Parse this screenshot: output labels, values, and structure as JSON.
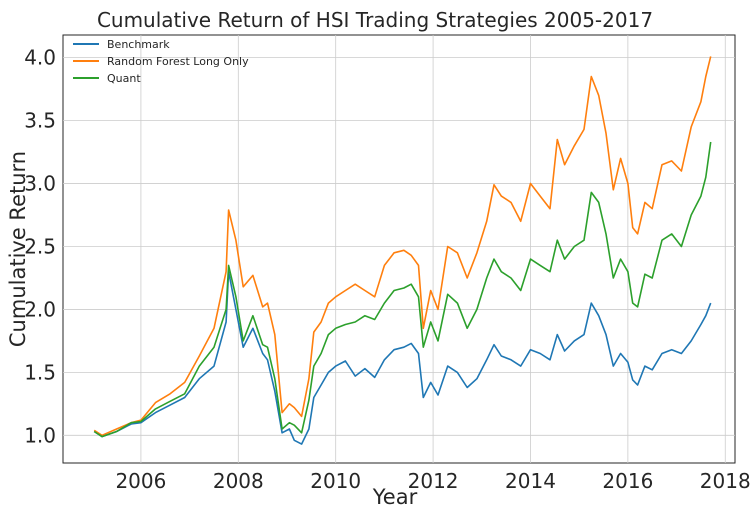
{
  "chart_data": {
    "type": "line",
    "title": "Cumulative Return of HSI Trading Strategies 2005-2017",
    "xlabel": "Year",
    "ylabel": "Cumulative Return",
    "xlim": [
      2004.4,
      2018.2
    ],
    "ylim": [
      0.78,
      4.18
    ],
    "xticks": [
      2006,
      2008,
      2010,
      2012,
      2014,
      2016,
      2018
    ],
    "yticks": [
      1.0,
      1.5,
      2.0,
      2.5,
      3.0,
      3.5,
      4.0
    ],
    "xtick_labels": [
      "2006",
      "2008",
      "2010",
      "2012",
      "2014",
      "2016",
      "2018"
    ],
    "ytick_labels": [
      "1.0",
      "1.5",
      "2.0",
      "2.5",
      "3.0",
      "3.5",
      "4.0"
    ],
    "grid": true,
    "legend_position": "top-left",
    "series": [
      {
        "name": "Benchmark",
        "color": "#1f77b4",
        "points": [
          [
            2005.04,
            1.03
          ],
          [
            2005.2,
            0.99
          ],
          [
            2005.5,
            1.03
          ],
          [
            2005.8,
            1.09
          ],
          [
            2006.0,
            1.1
          ],
          [
            2006.3,
            1.18
          ],
          [
            2006.6,
            1.24
          ],
          [
            2006.9,
            1.3
          ],
          [
            2007.2,
            1.45
          ],
          [
            2007.5,
            1.55
          ],
          [
            2007.75,
            1.9
          ],
          [
            2007.8,
            2.3
          ],
          [
            2007.95,
            2.0
          ],
          [
            2008.1,
            1.7
          ],
          [
            2008.3,
            1.85
          ],
          [
            2008.5,
            1.65
          ],
          [
            2008.6,
            1.6
          ],
          [
            2008.75,
            1.35
          ],
          [
            2008.9,
            1.02
          ],
          [
            2009.05,
            1.05
          ],
          [
            2009.15,
            0.96
          ],
          [
            2009.3,
            0.93
          ],
          [
            2009.45,
            1.05
          ],
          [
            2009.55,
            1.3
          ],
          [
            2009.7,
            1.4
          ],
          [
            2009.85,
            1.5
          ],
          [
            2010.0,
            1.55
          ],
          [
            2010.2,
            1.59
          ],
          [
            2010.4,
            1.47
          ],
          [
            2010.6,
            1.53
          ],
          [
            2010.8,
            1.46
          ],
          [
            2011.0,
            1.6
          ],
          [
            2011.2,
            1.68
          ],
          [
            2011.4,
            1.7
          ],
          [
            2011.55,
            1.73
          ],
          [
            2011.7,
            1.65
          ],
          [
            2011.8,
            1.3
          ],
          [
            2011.95,
            1.42
          ],
          [
            2012.1,
            1.32
          ],
          [
            2012.3,
            1.55
          ],
          [
            2012.5,
            1.5
          ],
          [
            2012.7,
            1.38
          ],
          [
            2012.9,
            1.45
          ],
          [
            2013.1,
            1.6
          ],
          [
            2013.25,
            1.72
          ],
          [
            2013.4,
            1.63
          ],
          [
            2013.6,
            1.6
          ],
          [
            2013.8,
            1.55
          ],
          [
            2014.0,
            1.68
          ],
          [
            2014.2,
            1.65
          ],
          [
            2014.4,
            1.6
          ],
          [
            2014.55,
            1.8
          ],
          [
            2014.7,
            1.67
          ],
          [
            2014.9,
            1.75
          ],
          [
            2015.1,
            1.8
          ],
          [
            2015.25,
            2.05
          ],
          [
            2015.4,
            1.95
          ],
          [
            2015.55,
            1.8
          ],
          [
            2015.7,
            1.55
          ],
          [
            2015.85,
            1.65
          ],
          [
            2016.0,
            1.58
          ],
          [
            2016.1,
            1.44
          ],
          [
            2016.2,
            1.4
          ],
          [
            2016.35,
            1.55
          ],
          [
            2016.5,
            1.52
          ],
          [
            2016.7,
            1.65
          ],
          [
            2016.9,
            1.68
          ],
          [
            2017.1,
            1.65
          ],
          [
            2017.3,
            1.75
          ],
          [
            2017.5,
            1.88
          ],
          [
            2017.6,
            1.95
          ],
          [
            2017.7,
            2.05
          ]
        ]
      },
      {
        "name": "Random Forest Long Only",
        "color": "#ff7f0e",
        "points": [
          [
            2005.04,
            1.04
          ],
          [
            2005.2,
            1.0
          ],
          [
            2005.5,
            1.05
          ],
          [
            2005.8,
            1.1
          ],
          [
            2006.0,
            1.12
          ],
          [
            2006.3,
            1.26
          ],
          [
            2006.6,
            1.33
          ],
          [
            2006.9,
            1.42
          ],
          [
            2007.2,
            1.63
          ],
          [
            2007.5,
            1.85
          ],
          [
            2007.75,
            2.3
          ],
          [
            2007.8,
            2.79
          ],
          [
            2007.95,
            2.55
          ],
          [
            2008.1,
            2.18
          ],
          [
            2008.3,
            2.27
          ],
          [
            2008.5,
            2.02
          ],
          [
            2008.6,
            2.05
          ],
          [
            2008.75,
            1.8
          ],
          [
            2008.9,
            1.18
          ],
          [
            2009.05,
            1.25
          ],
          [
            2009.15,
            1.22
          ],
          [
            2009.3,
            1.15
          ],
          [
            2009.45,
            1.45
          ],
          [
            2009.55,
            1.82
          ],
          [
            2009.7,
            1.9
          ],
          [
            2009.85,
            2.05
          ],
          [
            2010.0,
            2.1
          ],
          [
            2010.2,
            2.15
          ],
          [
            2010.4,
            2.2
          ],
          [
            2010.6,
            2.15
          ],
          [
            2010.8,
            2.1
          ],
          [
            2011.0,
            2.35
          ],
          [
            2011.2,
            2.45
          ],
          [
            2011.4,
            2.47
          ],
          [
            2011.55,
            2.43
          ],
          [
            2011.7,
            2.35
          ],
          [
            2011.8,
            1.85
          ],
          [
            2011.95,
            2.15
          ],
          [
            2012.1,
            2.0
          ],
          [
            2012.3,
            2.5
          ],
          [
            2012.5,
            2.45
          ],
          [
            2012.7,
            2.25
          ],
          [
            2012.9,
            2.45
          ],
          [
            2013.1,
            2.7
          ],
          [
            2013.25,
            2.99
          ],
          [
            2013.4,
            2.9
          ],
          [
            2013.6,
            2.85
          ],
          [
            2013.8,
            2.7
          ],
          [
            2014.0,
            3.0
          ],
          [
            2014.2,
            2.9
          ],
          [
            2014.4,
            2.8
          ],
          [
            2014.55,
            3.35
          ],
          [
            2014.7,
            3.15
          ],
          [
            2014.9,
            3.3
          ],
          [
            2015.1,
            3.43
          ],
          [
            2015.25,
            3.85
          ],
          [
            2015.4,
            3.7
          ],
          [
            2015.55,
            3.4
          ],
          [
            2015.7,
            2.95
          ],
          [
            2015.85,
            3.2
          ],
          [
            2016.0,
            3.0
          ],
          [
            2016.1,
            2.65
          ],
          [
            2016.2,
            2.6
          ],
          [
            2016.35,
            2.85
          ],
          [
            2016.5,
            2.8
          ],
          [
            2016.7,
            3.15
          ],
          [
            2016.9,
            3.18
          ],
          [
            2017.1,
            3.1
          ],
          [
            2017.3,
            3.45
          ],
          [
            2017.5,
            3.65
          ],
          [
            2017.6,
            3.85
          ],
          [
            2017.7,
            4.01
          ]
        ]
      },
      {
        "name": "Quant",
        "color": "#2ca02c",
        "points": [
          [
            2005.04,
            1.03
          ],
          [
            2005.2,
            0.99
          ],
          [
            2005.5,
            1.03
          ],
          [
            2005.8,
            1.1
          ],
          [
            2006.0,
            1.11
          ],
          [
            2006.3,
            1.21
          ],
          [
            2006.6,
            1.27
          ],
          [
            2006.9,
            1.33
          ],
          [
            2007.2,
            1.55
          ],
          [
            2007.5,
            1.7
          ],
          [
            2007.75,
            2.0
          ],
          [
            2007.8,
            2.35
          ],
          [
            2007.95,
            2.1
          ],
          [
            2008.1,
            1.75
          ],
          [
            2008.3,
            1.95
          ],
          [
            2008.5,
            1.72
          ],
          [
            2008.6,
            1.7
          ],
          [
            2008.75,
            1.45
          ],
          [
            2008.9,
            1.05
          ],
          [
            2009.05,
            1.1
          ],
          [
            2009.15,
            1.08
          ],
          [
            2009.3,
            1.02
          ],
          [
            2009.45,
            1.28
          ],
          [
            2009.55,
            1.55
          ],
          [
            2009.7,
            1.65
          ],
          [
            2009.85,
            1.8
          ],
          [
            2010.0,
            1.85
          ],
          [
            2010.2,
            1.88
          ],
          [
            2010.4,
            1.9
          ],
          [
            2010.6,
            1.95
          ],
          [
            2010.8,
            1.92
          ],
          [
            2011.0,
            2.05
          ],
          [
            2011.2,
            2.15
          ],
          [
            2011.4,
            2.17
          ],
          [
            2011.55,
            2.2
          ],
          [
            2011.7,
            2.1
          ],
          [
            2011.8,
            1.7
          ],
          [
            2011.95,
            1.9
          ],
          [
            2012.1,
            1.75
          ],
          [
            2012.3,
            2.12
          ],
          [
            2012.5,
            2.05
          ],
          [
            2012.7,
            1.85
          ],
          [
            2012.9,
            2.0
          ],
          [
            2013.1,
            2.25
          ],
          [
            2013.25,
            2.4
          ],
          [
            2013.4,
            2.3
          ],
          [
            2013.6,
            2.25
          ],
          [
            2013.8,
            2.15
          ],
          [
            2014.0,
            2.4
          ],
          [
            2014.2,
            2.35
          ],
          [
            2014.4,
            2.3
          ],
          [
            2014.55,
            2.55
          ],
          [
            2014.7,
            2.4
          ],
          [
            2014.9,
            2.5
          ],
          [
            2015.1,
            2.55
          ],
          [
            2015.25,
            2.93
          ],
          [
            2015.4,
            2.85
          ],
          [
            2015.55,
            2.6
          ],
          [
            2015.7,
            2.25
          ],
          [
            2015.85,
            2.4
          ],
          [
            2016.0,
            2.3
          ],
          [
            2016.1,
            2.05
          ],
          [
            2016.2,
            2.02
          ],
          [
            2016.35,
            2.28
          ],
          [
            2016.5,
            2.25
          ],
          [
            2016.7,
            2.55
          ],
          [
            2016.9,
            2.6
          ],
          [
            2017.1,
            2.5
          ],
          [
            2017.3,
            2.75
          ],
          [
            2017.5,
            2.9
          ],
          [
            2017.6,
            3.05
          ],
          [
            2017.7,
            3.33
          ]
        ]
      }
    ]
  }
}
